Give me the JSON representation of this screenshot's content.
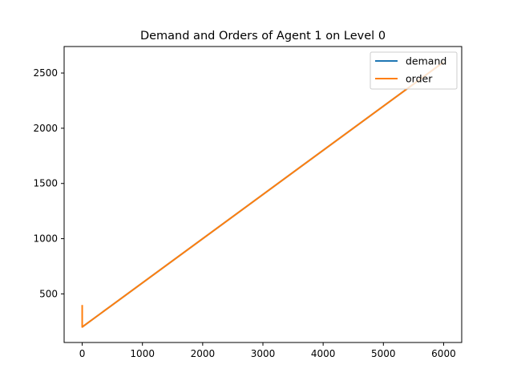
{
  "chart_data": {
    "type": "line",
    "title": "Demand and Orders of Agent 1 on Level 0",
    "xlabel": "",
    "ylabel": "",
    "xlim": [
      -300,
      6300
    ],
    "ylim": [
      60,
      2740
    ],
    "xticks": [
      0,
      1000,
      2000,
      3000,
      4000,
      5000,
      6000
    ],
    "yticks": [
      500,
      1000,
      1500,
      2000,
      2500
    ],
    "grid": false,
    "legend": "top-right",
    "series": [
      {
        "name": "demand",
        "color": "#1f77b4",
        "x": [
          0,
          6000
        ],
        "y": [
          200,
          2600
        ]
      },
      {
        "name": "order",
        "color": "#ff7f0e",
        "x": [
          0,
          0,
          6000
        ],
        "y": [
          400,
          200,
          2600
        ]
      }
    ]
  }
}
